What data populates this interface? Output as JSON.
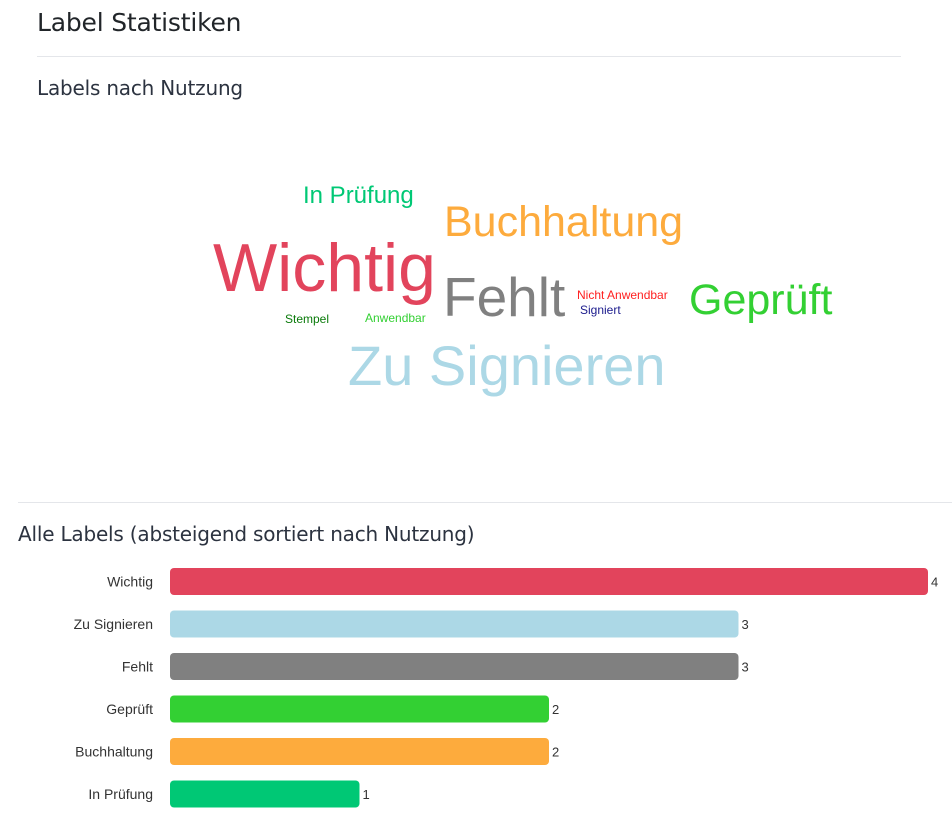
{
  "page": {
    "title": "Label Statistiken"
  },
  "usage_section": {
    "title": "Labels nach Nutzung"
  },
  "word_cloud": [
    {
      "text": "In Prüfung",
      "color": "#00c875"
    },
    {
      "text": "Buchhaltung",
      "color": "#fdab3d"
    },
    {
      "text": "Wichtig",
      "color": "#e2445c"
    },
    {
      "text": "Fehlt",
      "color": "#808080"
    },
    {
      "text": "Nicht Anwendbar",
      "color": "#ff2020"
    },
    {
      "text": "Signiert",
      "color": "#1a1a8c"
    },
    {
      "text": "Geprüft",
      "color": "#33d033"
    },
    {
      "text": "Stempel",
      "color": "#0a7a0a"
    },
    {
      "text": "Anwendbar",
      "color": "#33d033"
    },
    {
      "text": "Zu Signieren",
      "color": "#acd8e6"
    }
  ],
  "all_labels_section": {
    "title": "Alle Labels (absteigend sortiert nach Nutzung)"
  },
  "chart_data": {
    "type": "bar",
    "orientation": "horizontal",
    "categories": [
      "Wichtig",
      "Zu Signieren",
      "Fehlt",
      "Geprüft",
      "Buchhaltung",
      "In Prüfung"
    ],
    "values": [
      4,
      3,
      3,
      2,
      2,
      1
    ],
    "colors": [
      "#e2445c",
      "#acd8e6",
      "#808080",
      "#33d033",
      "#fdab3d",
      "#00c875"
    ],
    "xlim": [
      0,
      4
    ],
    "grid": false,
    "data_labels": true
  }
}
